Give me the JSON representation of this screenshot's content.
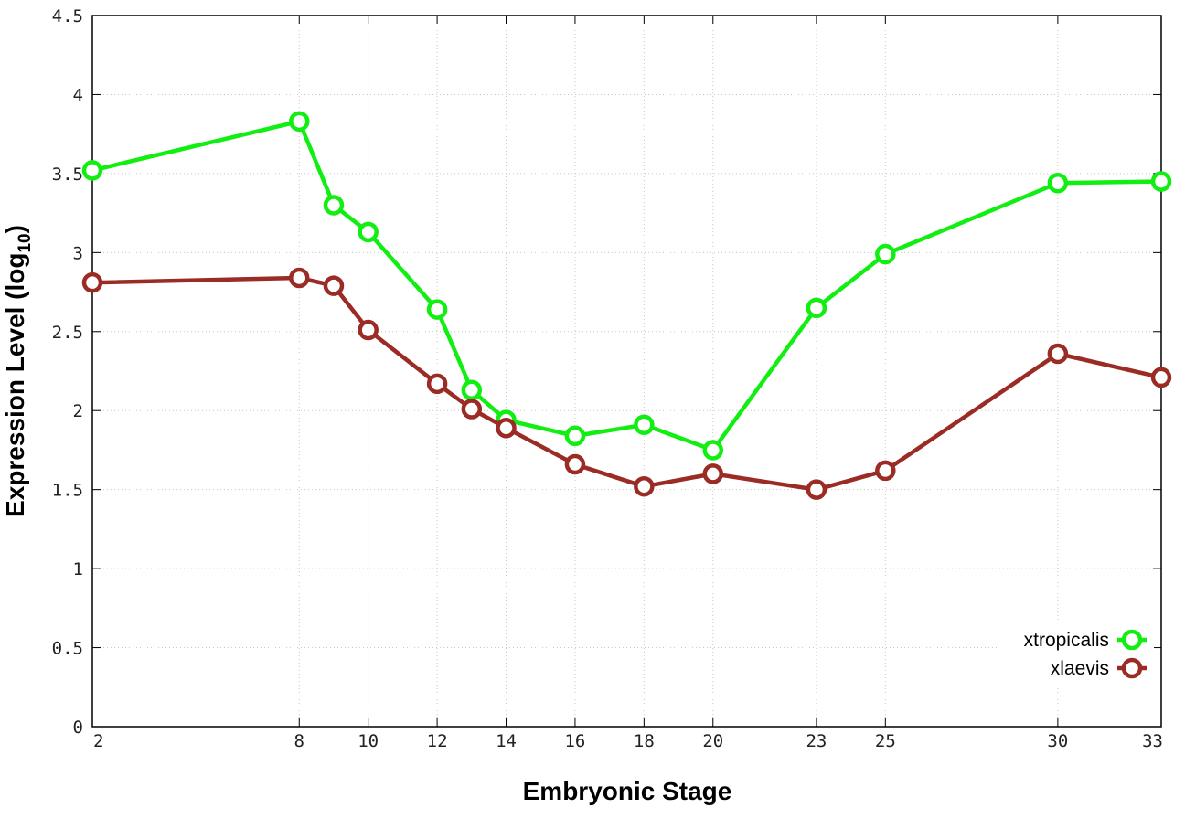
{
  "chart_data": {
    "type": "line",
    "xlabel": "Embryonic Stage",
    "ylabel_main": "Expression Level (log",
    "ylabel_sub": "10",
    "ylabel_end": ")",
    "x": [
      2,
      8,
      9,
      10,
      12,
      13,
      14,
      16,
      18,
      20,
      23,
      25,
      30,
      33
    ],
    "x_tick_values": [
      2,
      8,
      10,
      12,
      14,
      16,
      18,
      20,
      23,
      25,
      30,
      33
    ],
    "x_tick_labels": [
      "2",
      "8",
      "10",
      "12",
      "14",
      "16",
      "18",
      "20",
      "23",
      "25",
      "30",
      "33"
    ],
    "xlim": [
      2,
      33
    ],
    "y_ticks": [
      "0",
      "0.5",
      "1",
      "1.5",
      "2",
      "2.5",
      "3",
      "3.5",
      "4",
      "4.5"
    ],
    "ylim": [
      0,
      4.5
    ],
    "grid": true,
    "legend_position": "bottom-right",
    "series": [
      {
        "name": "xtropicalis",
        "color": "#11ee11",
        "marker": "open-circle",
        "values": [
          3.52,
          3.83,
          3.3,
          3.13,
          2.64,
          2.13,
          1.94,
          1.84,
          1.91,
          1.75,
          2.65,
          2.99,
          3.44,
          3.45
        ]
      },
      {
        "name": "xlaevis",
        "color": "#9b2b25",
        "marker": "open-circle",
        "values": [
          2.81,
          2.84,
          2.79,
          2.51,
          2.17,
          2.01,
          1.89,
          1.66,
          1.52,
          1.6,
          1.5,
          1.62,
          2.36,
          2.21
        ]
      }
    ]
  }
}
